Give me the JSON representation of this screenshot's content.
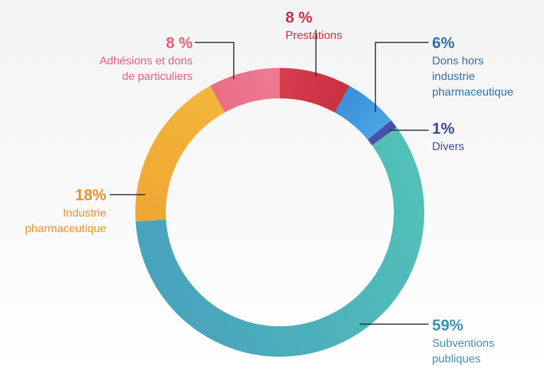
{
  "chart_data": {
    "type": "pie",
    "donut": true,
    "title": "",
    "slices": [
      {
        "name": "Prestations",
        "lines": [
          "Prestations"
        ],
        "value_label": "8 %",
        "value": 8,
        "color": "#d63e4e",
        "color2": "#c8303f"
      },
      {
        "name": "Dons hors industrie pharmaceutique",
        "lines": [
          "Dons hors",
          "industrie",
          "pharmaceutique"
        ],
        "value_label": "6%",
        "value": 6,
        "color": "#3a8fd6",
        "color2": "#4aa6e6"
      },
      {
        "name": "Divers",
        "lines": [
          "Divers"
        ],
        "value_label": "1%",
        "value": 1,
        "color": "#4a51a8",
        "color2": "#4a51a8"
      },
      {
        "name": "Subventions publiques",
        "lines": [
          "Subventions",
          "publiques"
        ],
        "value_label": "59%",
        "value": 59,
        "color": "#52c0b8",
        "color2": "#48a3bd"
      },
      {
        "name": "Industrie pharmaceutique",
        "lines": [
          "Industrie",
          "pharmaceutique"
        ],
        "value_label": "18%",
        "value": 18,
        "color": "#f0a633",
        "color2": "#f2b63c"
      },
      {
        "name": "Adhésions et dons de particuliers",
        "lines": [
          "Adhésions et dons",
          "de particuliers"
        ],
        "value_label": "8 %",
        "value": 8,
        "color": "#ea6d86",
        "color2": "#ee7b93"
      }
    ],
    "label_colors": [
      "#c22e44",
      "#2f6fa8",
      "#3d47a0",
      "#3d8fb3",
      "#e98f2b",
      "#e5607c"
    ]
  }
}
